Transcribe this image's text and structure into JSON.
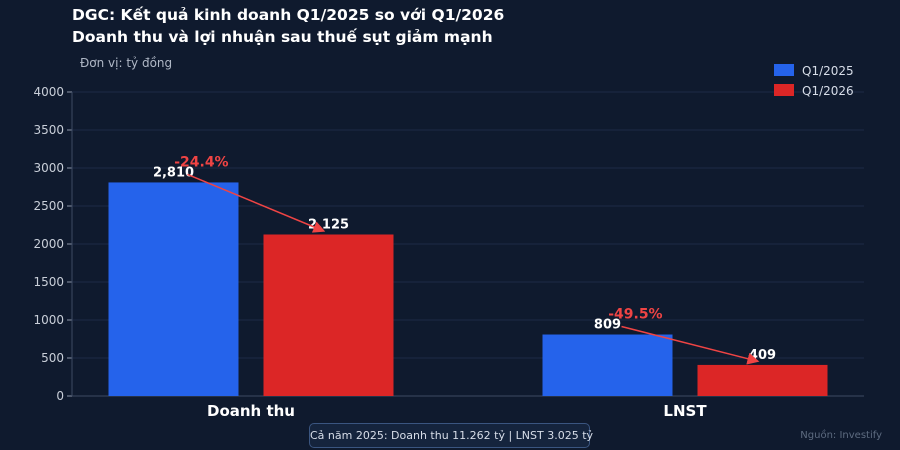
{
  "title": {
    "line1": "DGC: Kết quả kinh doanh Q1/2025 so với Q1/2026",
    "line2": "Doanh thu và lợi nhuận sau thuế sụt giảm mạnh"
  },
  "unit_label": "Đơn vị: tỷ đồng",
  "footer_note": "Cả năm 2025: Doanh thu 11.262 tỷ  |  LNST 3.025 tỷ",
  "source": "Nguồn: Investify",
  "colors": {
    "q1_2025": "#2563eb",
    "q1_2026": "#dc2626",
    "change_label": "#ef4444",
    "background": "#0f1a2e",
    "grid": "#1d2b45"
  },
  "chart_data": {
    "type": "bar",
    "categories": [
      "Doanh thu",
      "LNST"
    ],
    "series": [
      {
        "name": "Q1/2025",
        "values": [
          2810,
          809
        ],
        "labels": [
          "2,810",
          "809"
        ]
      },
      {
        "name": "Q1/2026",
        "values": [
          2125,
          409
        ],
        "labels": [
          "2,125",
          "409"
        ]
      }
    ],
    "changes": [
      "-24.4%",
      "-49.5%"
    ],
    "yticks": [
      0,
      500,
      1000,
      1500,
      2000,
      2500,
      3000,
      3500,
      4000
    ],
    "ylim": [
      0,
      4000
    ],
    "grid": true,
    "legend": "top-right"
  }
}
